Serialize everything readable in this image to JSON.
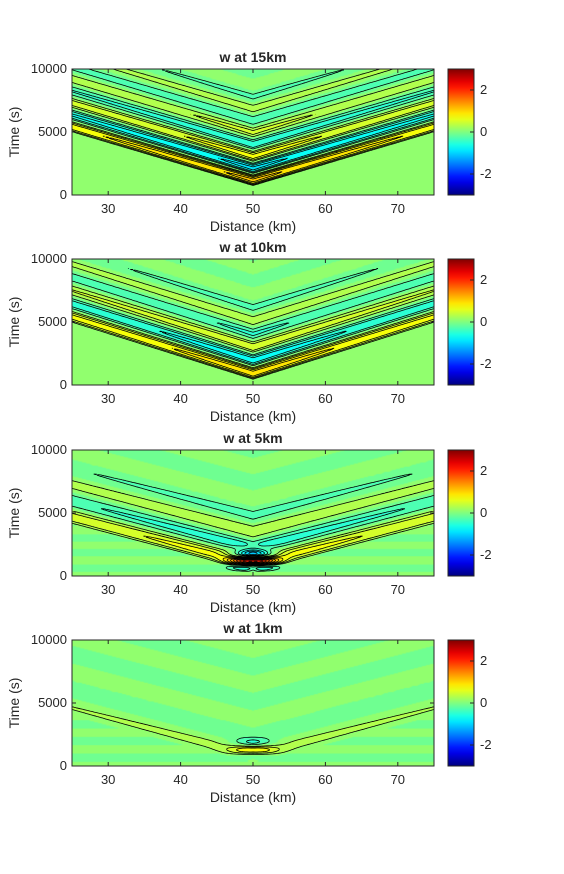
{
  "chart_data": [
    {
      "type": "contour",
      "title": "w at 15km",
      "xlabel": "Distance (km)",
      "ylabel": "Time (s)",
      "xlim": [
        25,
        75
      ],
      "ylim": [
        0,
        10000
      ],
      "xticks": [
        "30",
        "40",
        "50",
        "60",
        "70"
      ],
      "yticks": [
        "0",
        "5000",
        "10000"
      ],
      "colorbar": {
        "ticks": [
          "-2",
          "0",
          "2"
        ],
        "range": [
          -3,
          3
        ],
        "colormap": "jet"
      },
      "pattern": {
        "mode": "wave",
        "center_x": 50,
        "slope": 170,
        "period": 1900,
        "decay": 4500,
        "base": 700,
        "amp": 1.2
      }
    },
    {
      "type": "contour",
      "title": "w at 10km",
      "xlabel": "Distance (km)",
      "ylabel": "Time (s)",
      "xlim": [
        25,
        75
      ],
      "ylim": [
        0,
        10000
      ],
      "xticks": [
        "30",
        "40",
        "50",
        "60",
        "70"
      ],
      "yticks": [
        "0",
        "5000",
        "10000"
      ],
      "colorbar": {
        "ticks": [
          "-2",
          "0",
          "2"
        ],
        "range": [
          -3,
          3
        ],
        "colormap": "jet"
      },
      "pattern": {
        "mode": "wave",
        "center_x": 50,
        "slope": 180,
        "period": 2100,
        "decay": 4000,
        "base": 400,
        "amp": 1.1
      }
    },
    {
      "type": "contour",
      "title": "w at 5km",
      "xlabel": "Distance (km)",
      "ylabel": "Time (s)",
      "xlim": [
        25,
        75
      ],
      "ylim": [
        0,
        10000
      ],
      "xticks": [
        "30",
        "40",
        "50",
        "60",
        "70"
      ],
      "yticks": [
        "0",
        "5000",
        "10000"
      ],
      "colorbar": {
        "ticks": [
          "-2",
          "0",
          "2"
        ],
        "range": [
          -3,
          3
        ],
        "colormap": "jet"
      },
      "pattern": {
        "mode": "wave",
        "center_x": 50,
        "slope": 150,
        "period": 2600,
        "decay": 3800,
        "base": 300,
        "amp": 0.9,
        "core_amp": 1.6,
        "core_x": 50,
        "core_y": 1200,
        "core_sx": 3,
        "core_sy": 550
      }
    },
    {
      "type": "contour",
      "title": "w at 1km",
      "xlabel": "Distance (km)",
      "ylabel": "Time (s)",
      "xlim": [
        25,
        75
      ],
      "ylim": [
        0,
        10000
      ],
      "xticks": [
        "30",
        "40",
        "50",
        "60",
        "70"
      ],
      "yticks": [
        "0",
        "5000",
        "10000"
      ],
      "colorbar": {
        "ticks": [
          "-2",
          "0",
          "2"
        ],
        "range": [
          -3,
          3
        ],
        "colormap": "jet"
      },
      "pattern": {
        "mode": "wave",
        "center_x": 50,
        "slope": 150,
        "period": 2800,
        "decay": 3500,
        "base": 200,
        "amp": 0.35,
        "core_amp": 0.6,
        "core_x": 50,
        "core_y": 1300,
        "core_sx": 3,
        "core_sy": 600
      }
    }
  ]
}
